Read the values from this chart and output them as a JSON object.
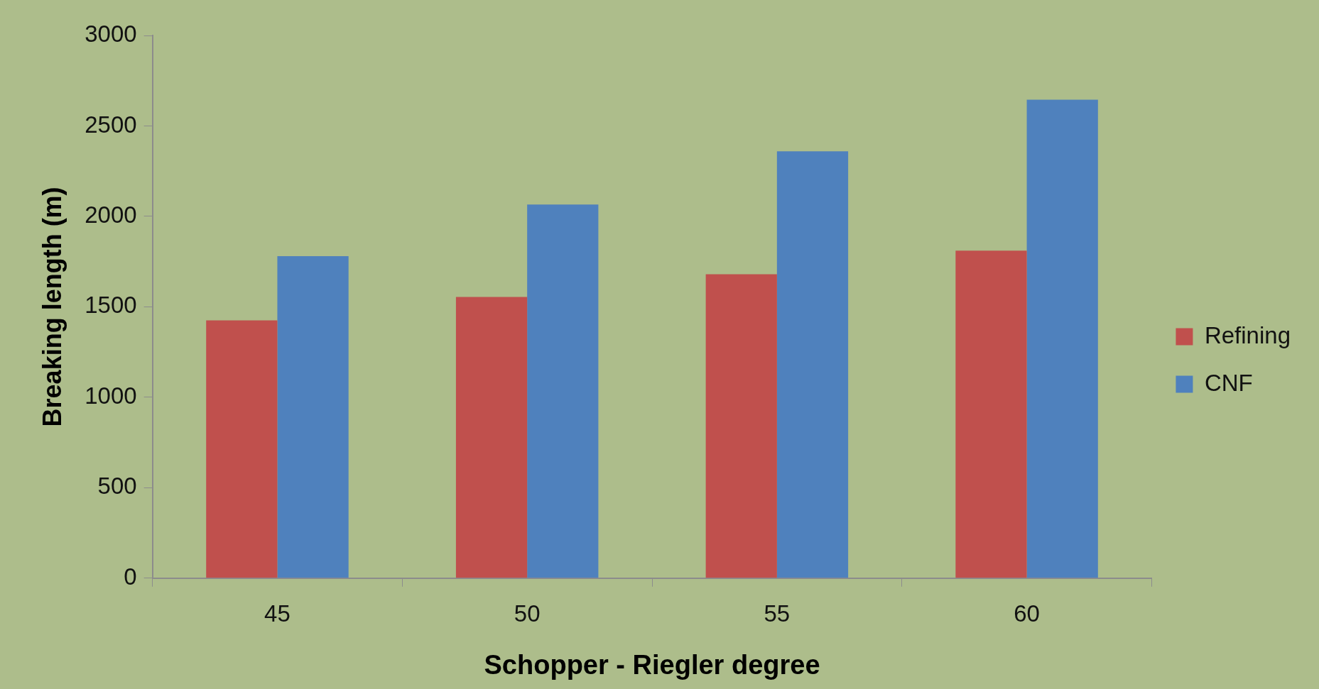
{
  "chart_data": {
    "type": "bar",
    "xlabel": "Schopper - Riegler degree",
    "ylabel": "Breaking length (m)",
    "categories": [
      "45",
      "50",
      "55",
      "60"
    ],
    "series": [
      {
        "name": "Refining",
        "color": "#c0504d",
        "values": [
          1425,
          1555,
          1680,
          1810
        ]
      },
      {
        "name": "CNF",
        "color": "#4f81bd",
        "values": [
          1780,
          2065,
          2360,
          2645
        ]
      }
    ],
    "ylim": [
      0,
      3000
    ],
    "yticks": [
      0,
      500,
      1000,
      1500,
      2000,
      2500,
      3000
    ],
    "grid": false,
    "legend": "right"
  }
}
